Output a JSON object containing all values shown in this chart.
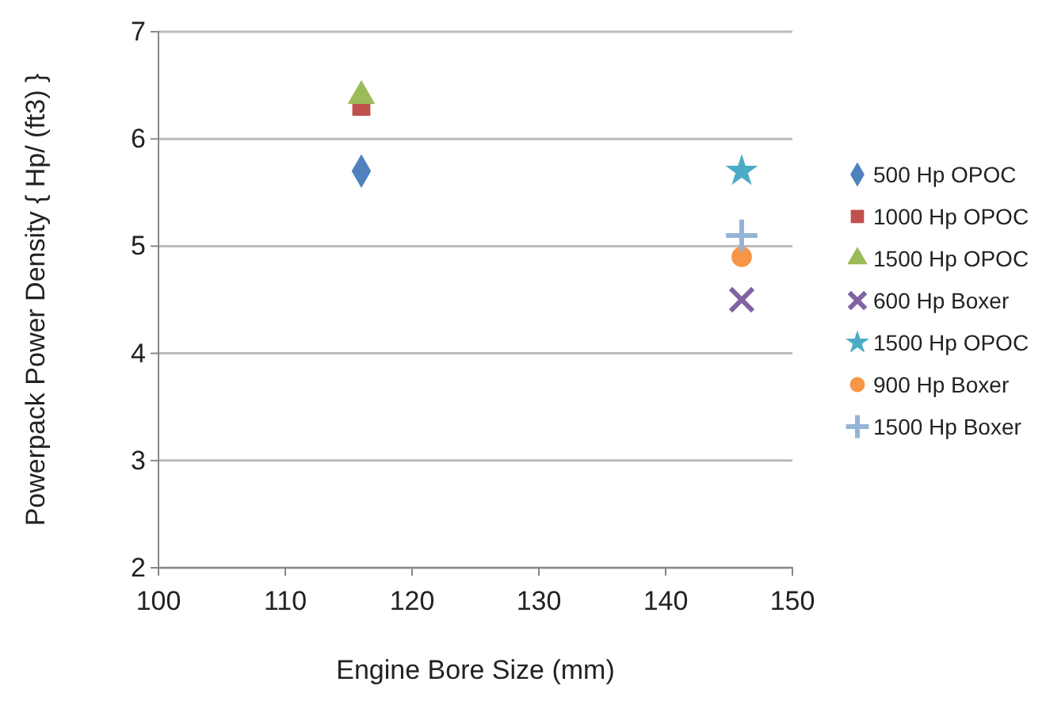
{
  "chart_data": {
    "type": "scatter",
    "xlabel": "Engine Bore Size (mm)",
    "ylabel": "Powerpack Power Density { Hp/ (ft3) }",
    "xlim": [
      100,
      150
    ],
    "xticks": [
      100,
      110,
      120,
      130,
      140,
      150
    ],
    "ylim": [
      2,
      7
    ],
    "yticks": [
      2,
      3,
      4,
      5,
      6,
      7
    ],
    "grid": "y",
    "legend": "right",
    "x": [
      116,
      146
    ],
    "series": [
      {
        "name": "500 Hp OPOC",
        "color": "#4f81bd",
        "marker": "diamond",
        "values": [
          5.7,
          null
        ]
      },
      {
        "name": "1000 Hp OPOC",
        "color": "#c0504d",
        "marker": "square",
        "values": [
          6.3,
          null
        ]
      },
      {
        "name": "1500 Hp OPOC",
        "color": "#9bbb59",
        "marker": "triangle",
        "values": [
          6.4,
          null
        ]
      },
      {
        "name": "600 Hp Boxer",
        "color": "#8064a2",
        "marker": "x",
        "values": [
          null,
          4.5
        ]
      },
      {
        "name": "1500 Hp OPOC",
        "color": "#4bacc6",
        "marker": "star",
        "values": [
          null,
          5.7
        ]
      },
      {
        "name": "900 Hp Boxer",
        "color": "#f79646",
        "marker": "circle",
        "values": [
          null,
          4.9
        ]
      },
      {
        "name": "1500 Hp Boxer",
        "color": "#95b3d7",
        "marker": "cross",
        "values": [
          null,
          5.1
        ]
      }
    ]
  }
}
